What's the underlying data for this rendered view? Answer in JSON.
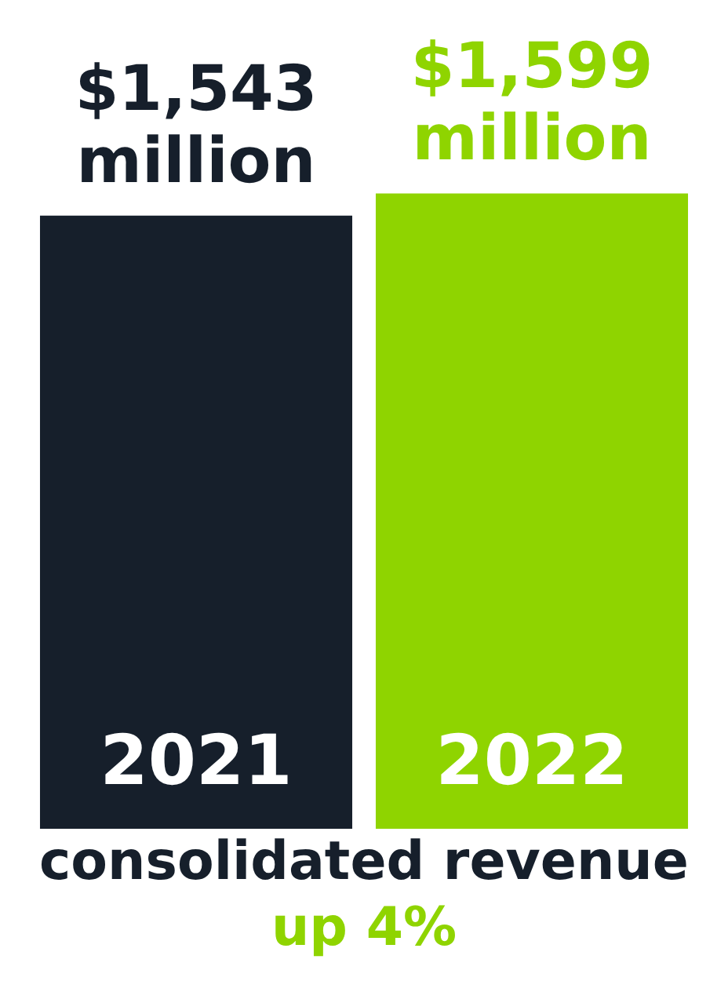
{
  "chart_data": {
    "type": "bar",
    "categories": [
      "2021",
      "2022"
    ],
    "values": [
      1543,
      1599
    ],
    "colors": [
      "#161f2b",
      "#8fd400"
    ],
    "value_labels": [
      "$1,543 million",
      "$1,599 million"
    ],
    "annotations": [
      "consolidated revenue",
      "up 4%"
    ]
  }
}
